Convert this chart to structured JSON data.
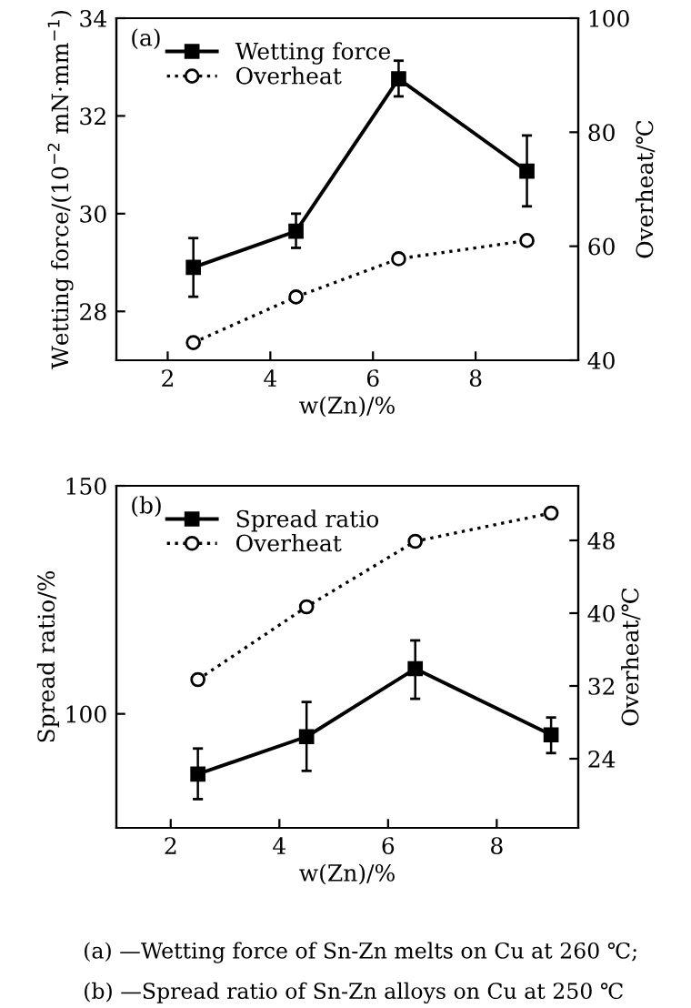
{
  "chart_data": [
    {
      "type": "line",
      "xlabel": "w(Zn)/%",
      "ylabel": "Wetting force/(10$^{−2}$ mN·mm$^{−1}$)",
      "y2label": "Overheat/℃",
      "x": [
        2.5,
        4.5,
        6.5,
        9
      ],
      "xlim": [
        1,
        10
      ],
      "xticks": [
        2,
        4,
        6,
        8
      ],
      "ylim": [
        27,
        34
      ],
      "yticks": [
        28,
        30,
        32,
        34
      ],
      "y2lim": [
        40,
        100
      ],
      "y2ticks": [
        40,
        60,
        80,
        100
      ],
      "legend": "top left",
      "grid": false,
      "series": [
        {
          "name": "Wetting force",
          "color": "#000000",
          "marker": "square",
          "line_style": "solid",
          "values": [
            28.9,
            29.64,
            32.76,
            30.87
          ],
          "errors": [
            [
              28.3,
              29.5
            ],
            [
              29.3,
              30.0
            ],
            [
              32.4,
              33.13
            ],
            [
              30.15,
              31.6
            ]
          ]
        },
        {
          "name": "Overheat",
          "color": "#000000",
          "marker": "circle",
          "line_style": "dotted",
          "axis": "y2",
          "values": [
            43.1,
            51.1,
            57.8,
            61.0
          ]
        }
      ],
      "annotations": [
        "(a)",
        "(a) —Wetting force of Sn-Zn melts on Cu at 260 ℃;"
      ]
    },
    {
      "type": "line",
      "xlabel": "w(Zn)/%",
      "ylabel": "Spread ratio/%",
      "y2label": "Overheat/℃",
      "x": [
        2.5,
        4.5,
        6.5,
        9
      ],
      "xlim": [
        1,
        9.5
      ],
      "xticks": [
        2,
        4,
        6,
        8
      ],
      "ylim": [
        75,
        150
      ],
      "yticks": [
        100,
        150
      ],
      "y2lim": [
        16.4,
        54
      ],
      "y2ticks": [
        24,
        32,
        40,
        48
      ],
      "legend": "top left",
      "grid": false,
      "series": [
        {
          "name": "Spread ratio",
          "color": "#000000",
          "marker": "square",
          "line_style": "solid",
          "values": [
            86.8,
            95.0,
            109.9,
            95.4
          ],
          "errors": [
            [
              81.3,
              92.4
            ],
            [
              87.5,
              102.6
            ],
            [
              103.3,
              116.1
            ],
            [
              91.4,
              99.2
            ]
          ]
        },
        {
          "name": "Overheat",
          "color": "#000000",
          "marker": "circle",
          "line_style": "dotted",
          "axis": "y2",
          "values": [
            32.7,
            40.7,
            47.9,
            51.0
          ]
        }
      ],
      "annotations": [
        "(b)",
        "(b) —Spread ratio of Sn-Zn alloys on Cu at 250 ℃"
      ]
    }
  ]
}
